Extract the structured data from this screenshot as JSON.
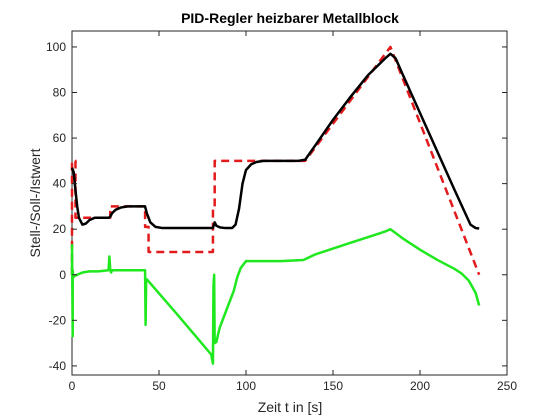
{
  "chart_data": {
    "type": "line",
    "title": "PID-Regler heizbarer Metallblock",
    "xlabel": "Zeit t in [s]",
    "ylabel": "Stell-/Soll-/Istwert",
    "xlim": [
      0,
      250
    ],
    "ylim": [
      -44,
      107
    ],
    "xticks": [
      0,
      50,
      100,
      150,
      200,
      250
    ],
    "yticks": [
      -40,
      -20,
      0,
      20,
      40,
      60,
      80,
      100
    ],
    "grid": false,
    "legend": "none",
    "series": [
      {
        "role": "sollwert",
        "color": "#e31a1c",
        "style": "dashed",
        "x": [
          0,
          0.01,
          2,
          2.01,
          6,
          22,
          22.01,
          42,
          42.01,
          44,
          44.01,
          81,
          81.01,
          82,
          82.01,
          104,
          134,
          183,
          234
        ],
        "y": [
          0,
          50,
          50,
          25,
          25,
          25,
          30,
          30,
          21,
          21,
          10,
          10,
          30,
          30,
          50,
          50,
          50,
          100,
          0
        ]
      },
      {
        "role": "istwert",
        "color": "#000000",
        "style": "solid",
        "x": [
          0,
          1,
          2,
          3,
          4,
          6,
          8,
          10,
          13,
          17,
          21,
          22,
          23,
          25,
          28,
          32,
          36,
          40,
          42,
          43,
          45,
          48,
          52,
          60,
          70,
          80,
          81,
          82,
          83,
          85,
          88,
          92,
          94,
          96,
          98,
          100,
          103,
          106,
          110,
          120,
          130,
          134,
          140,
          150,
          160,
          170,
          180,
          183,
          186,
          190,
          200,
          210,
          220,
          226,
          229,
          232,
          234
        ],
        "y": [
          47,
          45,
          37,
          30,
          25,
          22,
          22.5,
          24,
          25,
          25,
          25,
          25.5,
          27,
          28.5,
          29.5,
          30,
          30,
          30,
          30,
          27,
          23,
          21,
          20.5,
          20.5,
          20.5,
          20.5,
          20.5,
          23,
          21.5,
          20.8,
          20.5,
          20.5,
          22,
          29,
          40,
          46,
          48.5,
          49.5,
          50,
          50,
          50,
          50.5,
          57,
          68,
          78,
          87.5,
          95,
          97,
          95,
          88,
          71,
          54,
          37,
          27,
          22,
          20.5,
          20.3
        ]
      },
      {
        "role": "stellwert",
        "color": "#1fe81f",
        "style": "solid",
        "x": [
          0,
          0.01,
          0.4,
          0.41,
          0.8,
          1.5,
          3,
          6,
          10,
          15,
          21,
          21.5,
          22,
          22.5,
          23,
          30,
          35,
          40,
          42,
          42.3,
          42.6,
          43,
          60,
          70,
          80,
          81,
          81.3,
          81.7,
          82,
          83,
          84,
          85,
          90,
          93,
          95,
          97,
          100,
          110,
          120,
          133,
          140,
          150,
          160,
          170,
          180,
          183,
          190,
          200,
          210,
          220,
          224,
          228,
          232,
          234
        ],
        "y": [
          0,
          13,
          -27,
          2,
          -1,
          -0.5,
          0,
          1,
          1.5,
          1.5,
          2,
          8,
          2,
          1,
          2,
          2,
          2,
          2,
          2,
          -22,
          -3,
          -2,
          -17,
          -26,
          -35,
          -39,
          -5,
          0,
          -30,
          -29.5,
          -26,
          -23,
          -13,
          -7,
          -1,
          3,
          6,
          6,
          6,
          6.5,
          9,
          11.5,
          14,
          16.5,
          19,
          20,
          16,
          11,
          6.5,
          2.5,
          0.5,
          -2.5,
          -8,
          -13.5
        ]
      }
    ]
  }
}
